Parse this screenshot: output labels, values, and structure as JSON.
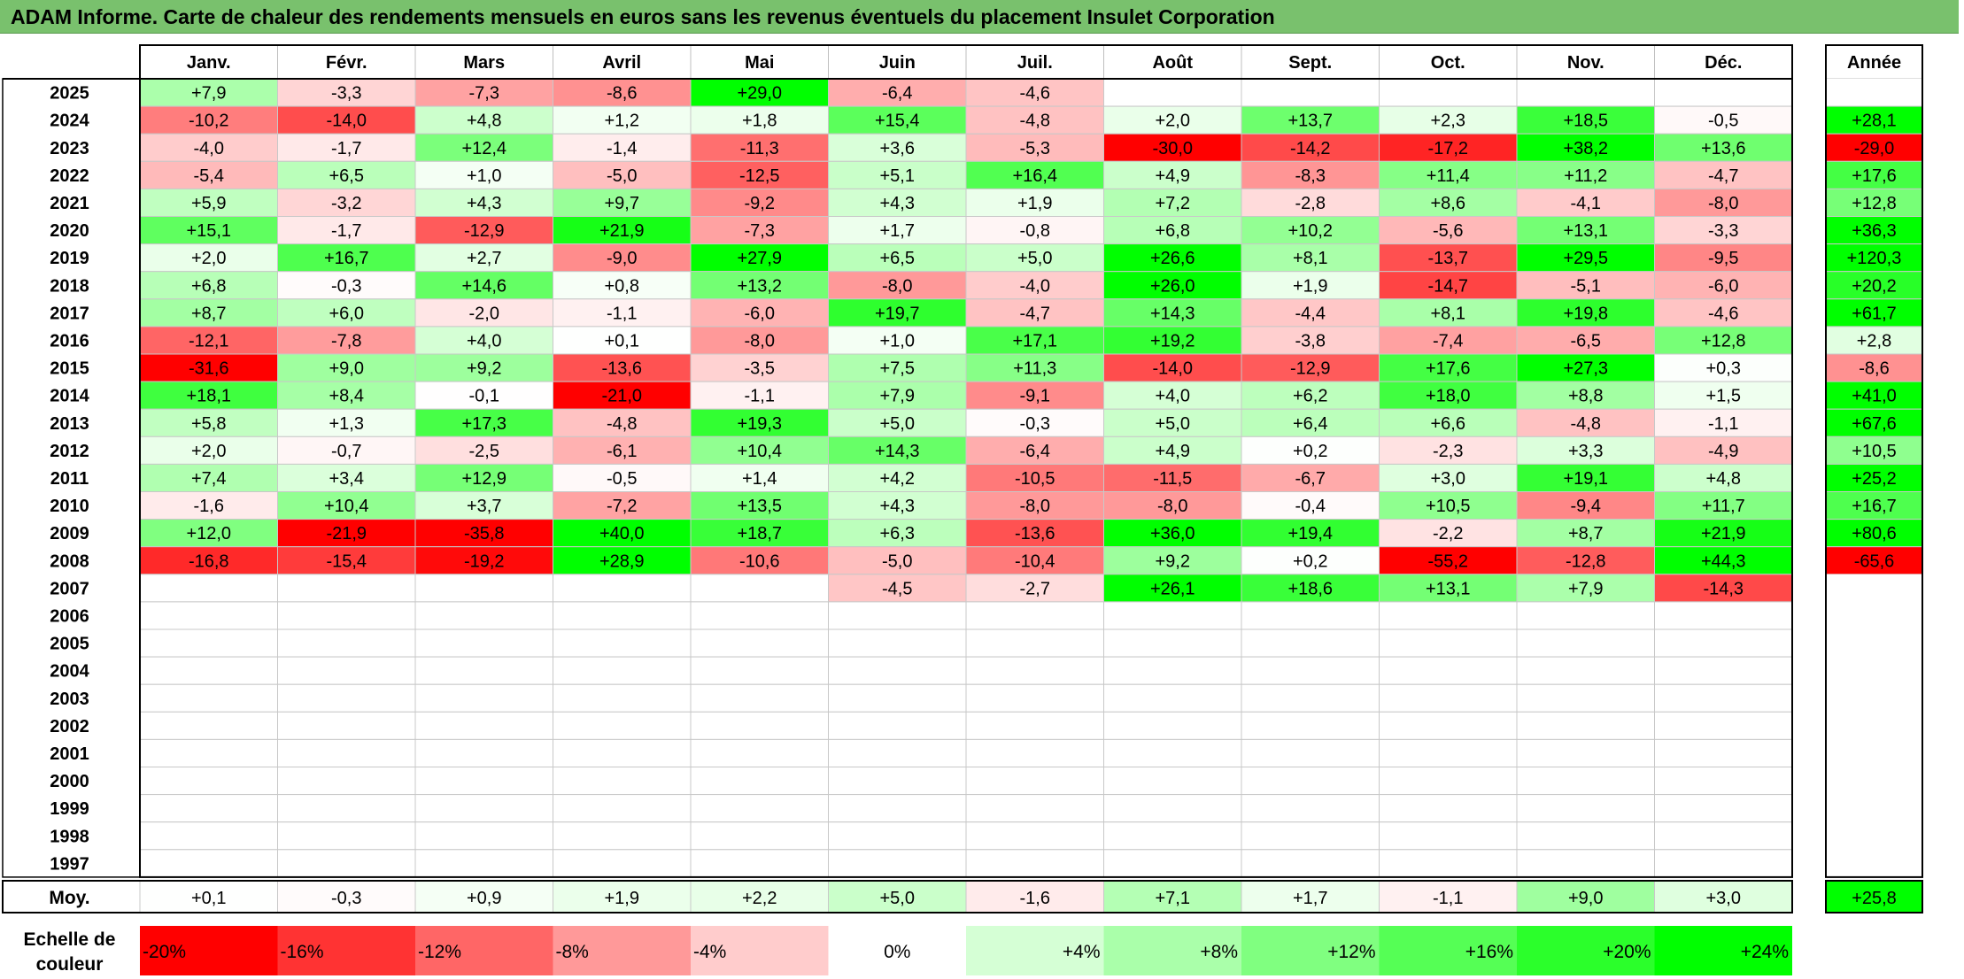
{
  "title": "ADAM Informe. Carte de chaleur des rendements mensuels en euros sans les revenus éventuels du placement Insulet Corporation",
  "chart_data": {
    "type": "heatmap",
    "months": [
      "Janv.",
      "Févr.",
      "Mars",
      "Avril",
      "Mai",
      "Juin",
      "Juil.",
      "Août",
      "Sept.",
      "Oct.",
      "Nov.",
      "Déc."
    ],
    "year_header": "Année",
    "rows": [
      {
        "year": "2025",
        "values": [
          "+7,9",
          "-3,3",
          "-7,3",
          "-8,6",
          "+29,0",
          "-6,4",
          "-4,6",
          "",
          "",
          "",
          "",
          ""
        ],
        "annual": ""
      },
      {
        "year": "2024",
        "values": [
          "-10,2",
          "-14,0",
          "+4,8",
          "+1,2",
          "+1,8",
          "+15,4",
          "-4,8",
          "+2,0",
          "+13,7",
          "+2,3",
          "+18,5",
          "-0,5"
        ],
        "annual": "+28,1"
      },
      {
        "year": "2023",
        "values": [
          "-4,0",
          "-1,7",
          "+12,4",
          "-1,4",
          "-11,3",
          "+3,6",
          "-5,3",
          "-30,0",
          "-14,2",
          "-17,2",
          "+38,2",
          "+13,6"
        ],
        "annual": "-29,0"
      },
      {
        "year": "2022",
        "values": [
          "-5,4",
          "+6,5",
          "+1,0",
          "-5,0",
          "-12,5",
          "+5,1",
          "+16,4",
          "+4,9",
          "-8,3",
          "+11,4",
          "+11,2",
          "-4,7"
        ],
        "annual": "+17,6"
      },
      {
        "year": "2021",
        "values": [
          "+5,9",
          "-3,2",
          "+4,3",
          "+9,7",
          "-9,2",
          "+4,3",
          "+1,9",
          "+7,2",
          "-2,8",
          "+8,6",
          "-4,1",
          "-8,0"
        ],
        "annual": "+12,8"
      },
      {
        "year": "2020",
        "values": [
          "+15,1",
          "-1,7",
          "-12,9",
          "+21,9",
          "-7,3",
          "+1,7",
          "-0,8",
          "+6,8",
          "+10,2",
          "-5,6",
          "+13,1",
          "-3,3"
        ],
        "annual": "+36,3"
      },
      {
        "year": "2019",
        "values": [
          "+2,0",
          "+16,7",
          "+2,7",
          "-9,0",
          "+27,9",
          "+6,5",
          "+5,0",
          "+26,6",
          "+8,1",
          "-13,7",
          "+29,5",
          "-9,5"
        ],
        "annual": "+120,3"
      },
      {
        "year": "2018",
        "values": [
          "+6,8",
          "-0,3",
          "+14,6",
          "+0,8",
          "+13,2",
          "-8,0",
          "-4,0",
          "+26,0",
          "+1,9",
          "-14,7",
          "-5,1",
          "-6,0"
        ],
        "annual": "+20,2"
      },
      {
        "year": "2017",
        "values": [
          "+8,7",
          "+6,0",
          "-2,0",
          "-1,1",
          "-6,0",
          "+19,7",
          "-4,7",
          "+14,3",
          "-4,4",
          "+8,1",
          "+19,8",
          "-4,6"
        ],
        "annual": "+61,7"
      },
      {
        "year": "2016",
        "values": [
          "-12,1",
          "-7,8",
          "+4,0",
          "+0,1",
          "-8,0",
          "+1,0",
          "+17,1",
          "+19,2",
          "-3,8",
          "-7,4",
          "-6,5",
          "+12,8"
        ],
        "annual": "+2,8"
      },
      {
        "year": "2015",
        "values": [
          "-31,6",
          "+9,0",
          "+9,2",
          "-13,6",
          "-3,5",
          "+7,5",
          "+11,3",
          "-14,0",
          "-12,9",
          "+17,6",
          "+27,3",
          "+0,3"
        ],
        "annual": "-8,6"
      },
      {
        "year": "2014",
        "values": [
          "+18,1",
          "+8,4",
          "-0,1",
          "-21,0",
          "-1,1",
          "+7,9",
          "-9,1",
          "+4,0",
          "+6,2",
          "+18,0",
          "+8,8",
          "+1,5"
        ],
        "annual": "+41,0"
      },
      {
        "year": "2013",
        "values": [
          "+5,8",
          "+1,3",
          "+17,3",
          "-4,8",
          "+19,3",
          "+5,0",
          "-0,3",
          "+5,0",
          "+6,4",
          "+6,6",
          "-4,8",
          "-1,1"
        ],
        "annual": "+67,6"
      },
      {
        "year": "2012",
        "values": [
          "+2,0",
          "-0,7",
          "-2,5",
          "-6,1",
          "+10,4",
          "+14,3",
          "-6,4",
          "+4,9",
          "+0,2",
          "-2,3",
          "+3,3",
          "-4,9"
        ],
        "annual": "+10,5"
      },
      {
        "year": "2011",
        "values": [
          "+7,4",
          "+3,4",
          "+12,9",
          "-0,5",
          "+1,4",
          "+4,2",
          "-10,5",
          "-11,5",
          "-6,7",
          "+3,0",
          "+19,1",
          "+4,8"
        ],
        "annual": "+25,2"
      },
      {
        "year": "2010",
        "values": [
          "-1,6",
          "+10,4",
          "+3,7",
          "-7,2",
          "+13,5",
          "+4,3",
          "-8,0",
          "-8,0",
          "-0,4",
          "+10,5",
          "-9,4",
          "+11,7"
        ],
        "annual": "+16,7"
      },
      {
        "year": "2009",
        "values": [
          "+12,0",
          "-21,9",
          "-35,8",
          "+40,0",
          "+18,7",
          "+6,3",
          "-13,6",
          "+36,0",
          "+19,4",
          "-2,2",
          "+8,7",
          "+21,9"
        ],
        "annual": "+80,6"
      },
      {
        "year": "2008",
        "values": [
          "-16,8",
          "-15,4",
          "-19,2",
          "+28,9",
          "-10,6",
          "-5,0",
          "-10,4",
          "+9,2",
          "+0,2",
          "-55,2",
          "-12,8",
          "+44,3"
        ],
        "annual": "-65,6"
      },
      {
        "year": "2007",
        "values": [
          "",
          "",
          "",
          "",
          "",
          "-4,5",
          "-2,7",
          "+26,1",
          "+18,6",
          "+13,1",
          "+7,9",
          "-14,3"
        ],
        "annual": ""
      },
      {
        "year": "2006",
        "values": [
          "",
          "",
          "",
          "",
          "",
          "",
          "",
          "",
          "",
          "",
          "",
          ""
        ],
        "annual": ""
      },
      {
        "year": "2005",
        "values": [
          "",
          "",
          "",
          "",
          "",
          "",
          "",
          "",
          "",
          "",
          "",
          ""
        ],
        "annual": ""
      },
      {
        "year": "2004",
        "values": [
          "",
          "",
          "",
          "",
          "",
          "",
          "",
          "",
          "",
          "",
          "",
          ""
        ],
        "annual": ""
      },
      {
        "year": "2003",
        "values": [
          "",
          "",
          "",
          "",
          "",
          "",
          "",
          "",
          "",
          "",
          "",
          ""
        ],
        "annual": ""
      },
      {
        "year": "2002",
        "values": [
          "",
          "",
          "",
          "",
          "",
          "",
          "",
          "",
          "",
          "",
          "",
          ""
        ],
        "annual": ""
      },
      {
        "year": "2001",
        "values": [
          "",
          "",
          "",
          "",
          "",
          "",
          "",
          "",
          "",
          "",
          "",
          ""
        ],
        "annual": ""
      },
      {
        "year": "2000",
        "values": [
          "",
          "",
          "",
          "",
          "",
          "",
          "",
          "",
          "",
          "",
          "",
          ""
        ],
        "annual": ""
      },
      {
        "year": "1999",
        "values": [
          "",
          "",
          "",
          "",
          "",
          "",
          "",
          "",
          "",
          "",
          "",
          ""
        ],
        "annual": ""
      },
      {
        "year": "1998",
        "values": [
          "",
          "",
          "",
          "",
          "",
          "",
          "",
          "",
          "",
          "",
          "",
          ""
        ],
        "annual": ""
      },
      {
        "year": "1997",
        "values": [
          "",
          "",
          "",
          "",
          "",
          "",
          "",
          "",
          "",
          "",
          "",
          ""
        ],
        "annual": ""
      }
    ],
    "average": {
      "label": "Moy.",
      "values": [
        "+0,1",
        "-0,3",
        "+0,9",
        "+1,9",
        "+2,2",
        "+5,0",
        "-1,6",
        "+7,1",
        "+1,7",
        "-1,1",
        "+9,0",
        "+3,0"
      ],
      "annual": "+25,8"
    },
    "scale": {
      "label_line1": "Echelle de",
      "label_line2": "couleur",
      "items": [
        {
          "text": "-20%",
          "value": -20,
          "align": "left"
        },
        {
          "text": "-16%",
          "value": -16,
          "align": "left"
        },
        {
          "text": "-12%",
          "value": -12,
          "align": "left"
        },
        {
          "text": "-8%",
          "value": -8,
          "align": "left"
        },
        {
          "text": "-4%",
          "value": -4,
          "align": "left"
        },
        {
          "text": "0%",
          "value": 0,
          "align": "center"
        },
        {
          "text": "+4%",
          "value": 4,
          "align": "right"
        },
        {
          "text": "+8%",
          "value": 8,
          "align": "right"
        },
        {
          "text": "+12%",
          "value": 12,
          "align": "right"
        },
        {
          "text": "+16%",
          "value": 16,
          "align": "right"
        },
        {
          "text": "+20%",
          "value": 20,
          "align": "right"
        },
        {
          "text": "+24%",
          "value": 24,
          "align": "right"
        }
      ]
    },
    "colors": {
      "negative_max": "#ff0000",
      "neutral": "#ffffff",
      "positive_max": "#00ff00",
      "title_bar": "#79c16d"
    }
  }
}
